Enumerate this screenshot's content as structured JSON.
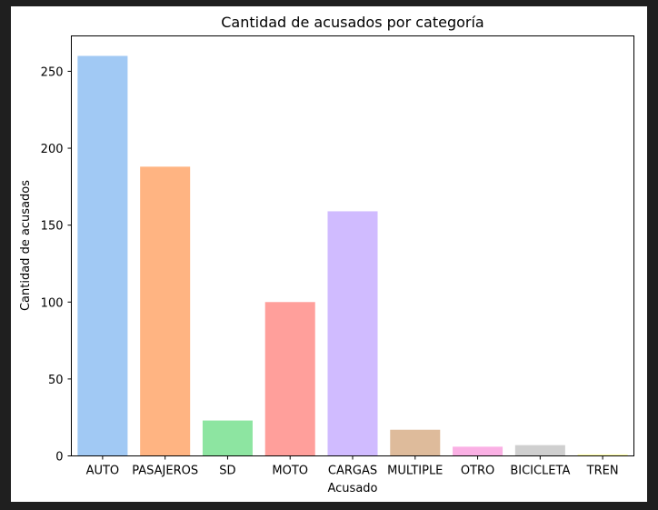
{
  "chart_data": {
    "type": "bar",
    "title": "Cantidad de acusados por categoría",
    "xlabel": "Acusado",
    "ylabel": "Cantidad de acusados",
    "categories": [
      "AUTO",
      "PASAJEROS",
      "SD",
      "MOTO",
      "CARGAS",
      "MULTIPLE",
      "OTRO",
      "BICICLETA",
      "TREN"
    ],
    "values": [
      260,
      188,
      23,
      100,
      159,
      17,
      6,
      7,
      1
    ],
    "colors": [
      "#a1c9f4",
      "#ffb482",
      "#8de5a1",
      "#ff9f9b",
      "#d0bbff",
      "#debb9b",
      "#fab0e4",
      "#cfcfcf",
      "#fffea3"
    ],
    "yticks": [
      0,
      50,
      100,
      150,
      200,
      250
    ],
    "ylim": [
      0,
      273
    ],
    "grid": false,
    "legend": "none"
  }
}
